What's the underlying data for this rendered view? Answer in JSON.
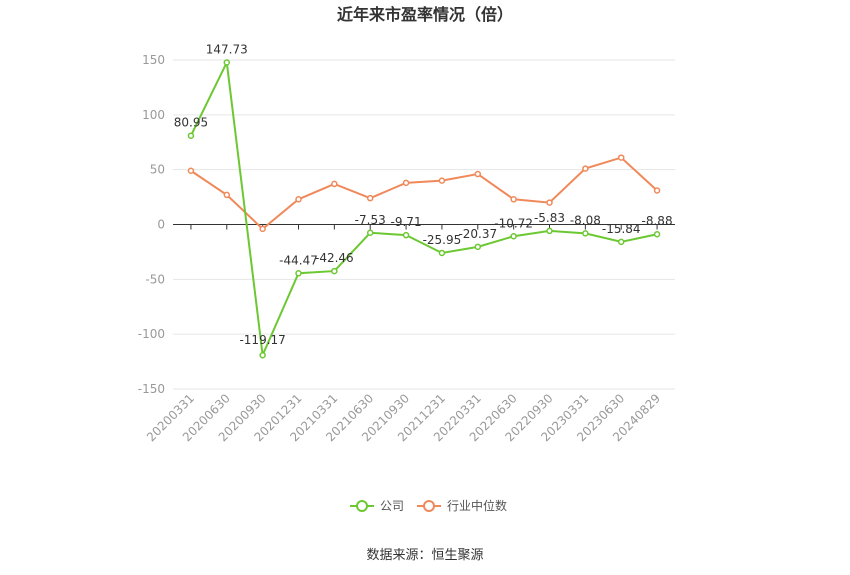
{
  "chart_data": {
    "type": "line",
    "title": "近年来市盈率情况（倍）",
    "categories": [
      "20200331",
      "20200630",
      "20200930",
      "20201231",
      "20210331",
      "20210630",
      "20210930",
      "20211231",
      "20220331",
      "20220630",
      "20220930",
      "20230331",
      "20230630",
      "20240829"
    ],
    "series": [
      {
        "name": "公司",
        "color": "#6cc832",
        "values": [
          80.95,
          147.73,
          -119.17,
          -44.47,
          -42.46,
          -7.53,
          -9.71,
          -25.95,
          -20.37,
          -10.72,
          -5.83,
          -8.08,
          -15.84,
          -8.88
        ],
        "labels": [
          "80.95",
          "147.73",
          "-119.17",
          "-44.47",
          "-42.46",
          "-7.53",
          "-9.71",
          "-25.95",
          "-20.37",
          "-10.72",
          "-5.83",
          "-8.08",
          "-15.84",
          "-8.88"
        ]
      },
      {
        "name": "行业中位数",
        "color": "#f0895a",
        "values": [
          49,
          27,
          -4,
          23,
          37,
          24,
          38,
          40,
          46,
          23,
          20,
          51,
          61,
          31
        ]
      }
    ],
    "yticks": [
      "150",
      "100",
      "50",
      "0",
      "-50",
      "-100",
      "-150"
    ],
    "ytick_values": [
      150,
      100,
      50,
      0,
      -50,
      -100,
      -150
    ],
    "ylim": [
      -150,
      150
    ],
    "grid": true,
    "legend_position": "bottom"
  },
  "source": "数据来源：恒生聚源"
}
